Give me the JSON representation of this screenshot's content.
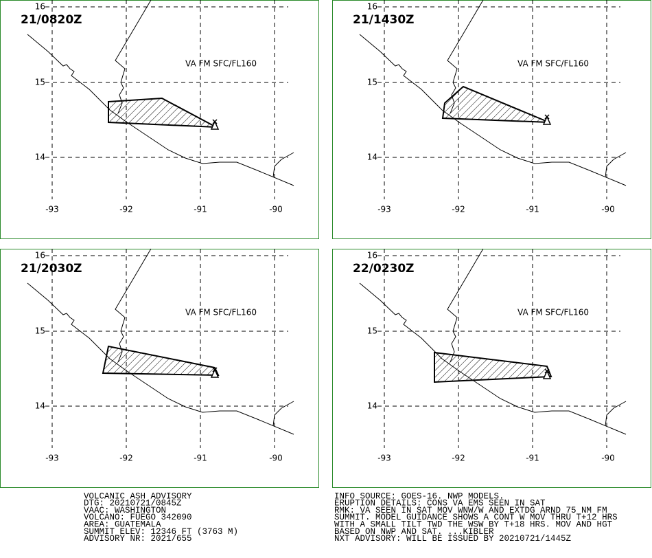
{
  "panels": [
    {
      "time": "21/0820Z",
      "layer": "VA FM SFC/FL160"
    },
    {
      "time": "21/1430Z",
      "layer": "VA FM SFC/FL160"
    },
    {
      "time": "21/2030Z",
      "layer": "VA FM SFC/FL160"
    },
    {
      "time": "22/0230Z",
      "layer": "VA FM SFC/FL160"
    }
  ],
  "lon_labels": [
    "-93",
    "-92",
    "-91",
    "-90"
  ],
  "lat_labels": [
    "16",
    "15",
    "14"
  ],
  "advisory_left": [
    "VOLCANIC ASH ADVISORY",
    "DTG: 20210721/0845Z",
    "VAAC: WASHINGTON",
    "VOLCANO: FUEGO 342090",
    "AREA: GUATEMALA",
    "SUMMIT ELEV: 12346 FT (3763 M)",
    "ADVISORY NR: 2021/655"
  ],
  "advisory_right": [
    "INFO SOURCE: GOES-16. NWP MODELS.",
    "ERUPTION DETAILS: CONS VA EMS SEEN IN SAT",
    "RMK: VA SEEN IN SAT MOV WNW/W AND EXTDG ARND 75 NM FM",
    "SUMMIT. MODEL GUIDANCE SHOWS A CONT W MOV THRU T+12 HRS",
    "WITH A SMALL TILT TWD THE WSW BY T+18 HRS. MOV AND HGT",
    "BASED ON NWP AND SAT. ...KIBLER",
    "NXT ADVISORY: WILL BE ISSUED BY 20210721/1445Z"
  ]
}
